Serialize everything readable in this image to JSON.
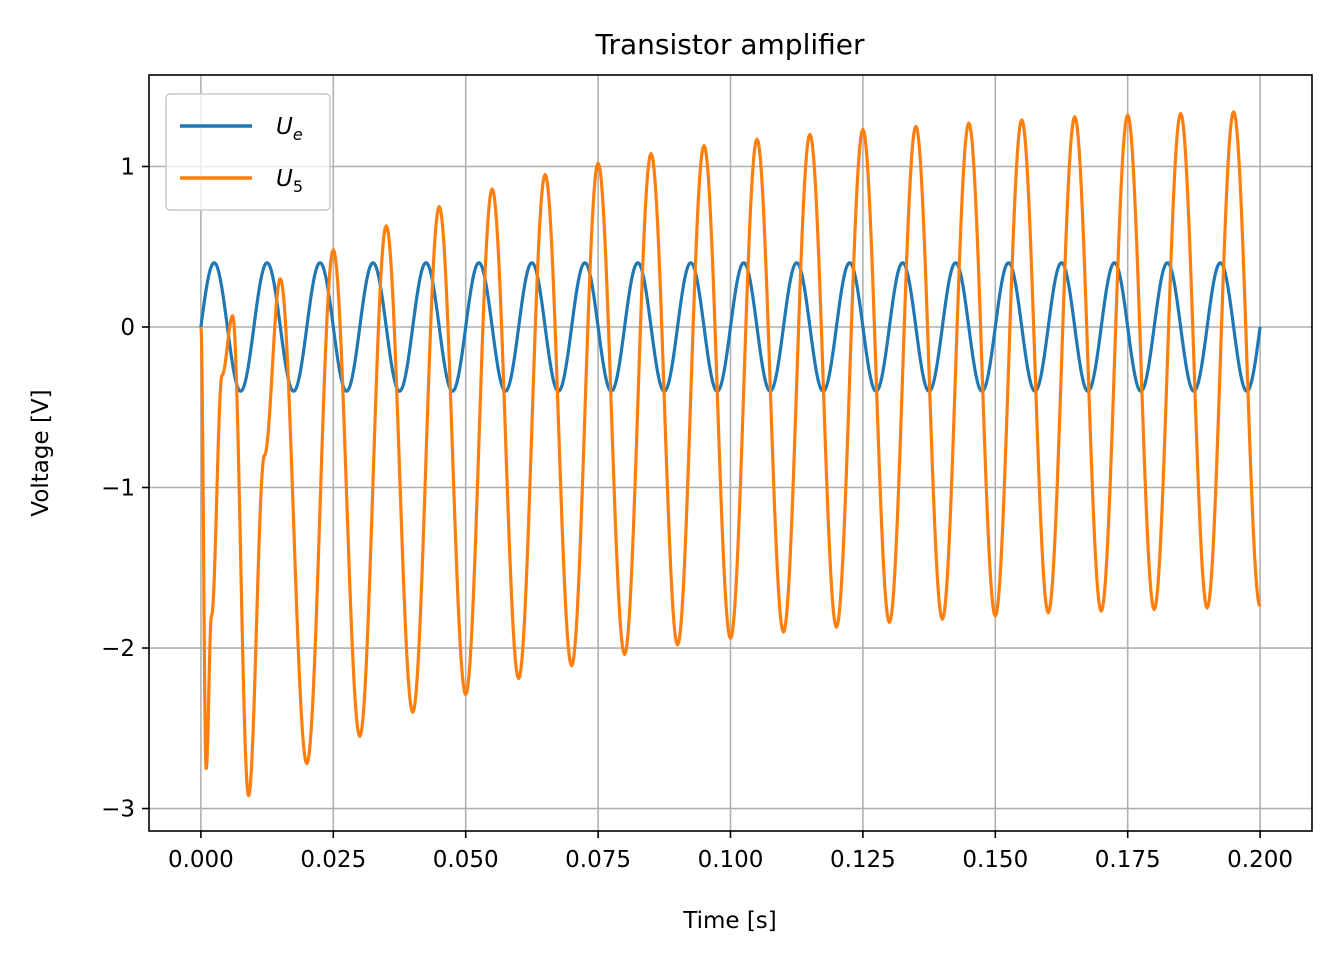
{
  "chart_data": {
    "type": "line",
    "title": "Transistor amplifier",
    "xlabel": "Time [s]",
    "ylabel": "Voltage [V]",
    "xlim": [
      -0.0098,
      0.2098
    ],
    "ylim": [
      -3.14,
      1.57
    ],
    "grid": true,
    "legend_position": "upper-left",
    "x_ticks": [
      0.0,
      0.025,
      0.05,
      0.075,
      0.1,
      0.125,
      0.15,
      0.175,
      0.2
    ],
    "x_tick_labels": [
      "0.000",
      "0.025",
      "0.050",
      "0.075",
      "0.100",
      "0.125",
      "0.150",
      "0.175",
      "0.200"
    ],
    "y_ticks": [
      -3,
      -2,
      -1,
      0,
      1
    ],
    "y_tick_labels": [
      "−3",
      "−2",
      "−1",
      "0",
      "1"
    ],
    "series": [
      {
        "name_main": "U",
        "name_sub": "e",
        "color": "#1f77b4",
        "description": "sine input, amplitude 0.4 V, frequency 100 Hz",
        "amplitude": 0.4,
        "frequency_hz": 100
      },
      {
        "name_main": "U",
        "name_sub": "5",
        "color": "#ff7f0e",
        "x": [
          0,
          0.001,
          0.002,
          0.004,
          0.006,
          0.009,
          0.012,
          0.015,
          0.02,
          0.025,
          0.03,
          0.035,
          0.04,
          0.045,
          0.05,
          0.055,
          0.06,
          0.065,
          0.07,
          0.075,
          0.08,
          0.085,
          0.09,
          0.095,
          0.1,
          0.105,
          0.11,
          0.115,
          0.12,
          0.125,
          0.13,
          0.135,
          0.14,
          0.145,
          0.15,
          0.155,
          0.16,
          0.165,
          0.17,
          0.175,
          0.18,
          0.185,
          0.19,
          0.195,
          0.2
        ],
        "y": [
          0.0,
          -2.75,
          -1.8,
          -0.3,
          0.07,
          -2.92,
          -0.8,
          0.3,
          -2.72,
          0.48,
          -2.55,
          0.63,
          -2.4,
          0.75,
          -2.29,
          0.86,
          -2.19,
          0.95,
          -2.11,
          1.02,
          -2.04,
          1.08,
          -1.98,
          1.13,
          -1.94,
          1.17,
          -1.9,
          1.2,
          -1.87,
          1.23,
          -1.84,
          1.25,
          -1.82,
          1.27,
          -1.8,
          1.29,
          -1.78,
          1.31,
          -1.77,
          1.32,
          -1.76,
          1.33,
          -1.75,
          1.34,
          -1.74
        ]
      }
    ]
  }
}
